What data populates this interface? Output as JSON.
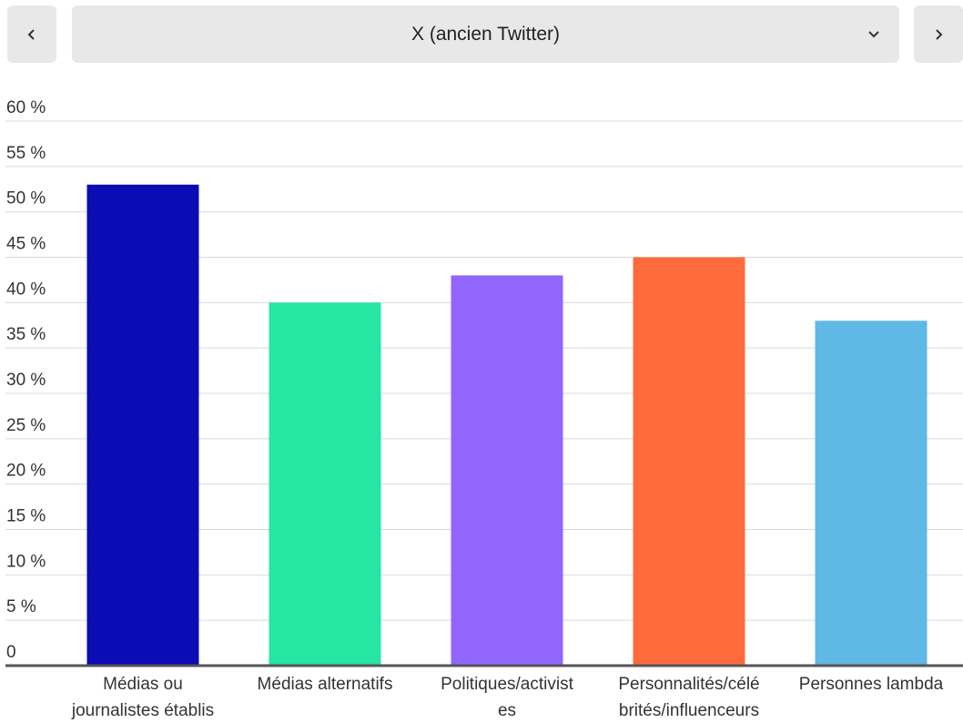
{
  "selector": {
    "value": "X (ancien Twitter)",
    "prev_icon": "chevron-left-icon",
    "next_icon": "chevron-right-icon",
    "dropdown_icon": "chevron-down-icon"
  },
  "chart_data": {
    "type": "bar",
    "categories": [
      [
        "Médias ou",
        "journalistes établis"
      ],
      [
        "Médias alternatifs"
      ],
      [
        "Politiques/activist",
        "es"
      ],
      [
        "Personnalités/célé",
        "brités/influenceurs"
      ],
      [
        "Personnes lambda"
      ]
    ],
    "values": [
      53,
      40,
      43,
      45,
      38
    ],
    "colors": [
      "#0c0cb4",
      "#26e6a4",
      "#9166ff",
      "#ff6b3d",
      "#60b8e6"
    ],
    "ylim": [
      0,
      60
    ],
    "yticks": [
      0,
      5,
      10,
      15,
      20,
      25,
      30,
      35,
      40,
      45,
      50,
      55,
      60
    ],
    "ytick_labels": [
      "0",
      "5 %",
      "10 %",
      "15 %",
      "20 %",
      "25 %",
      "30 %",
      "35 %",
      "40 %",
      "45 %",
      "50 %",
      "55 %",
      "60 %"
    ],
    "grid": true
  }
}
